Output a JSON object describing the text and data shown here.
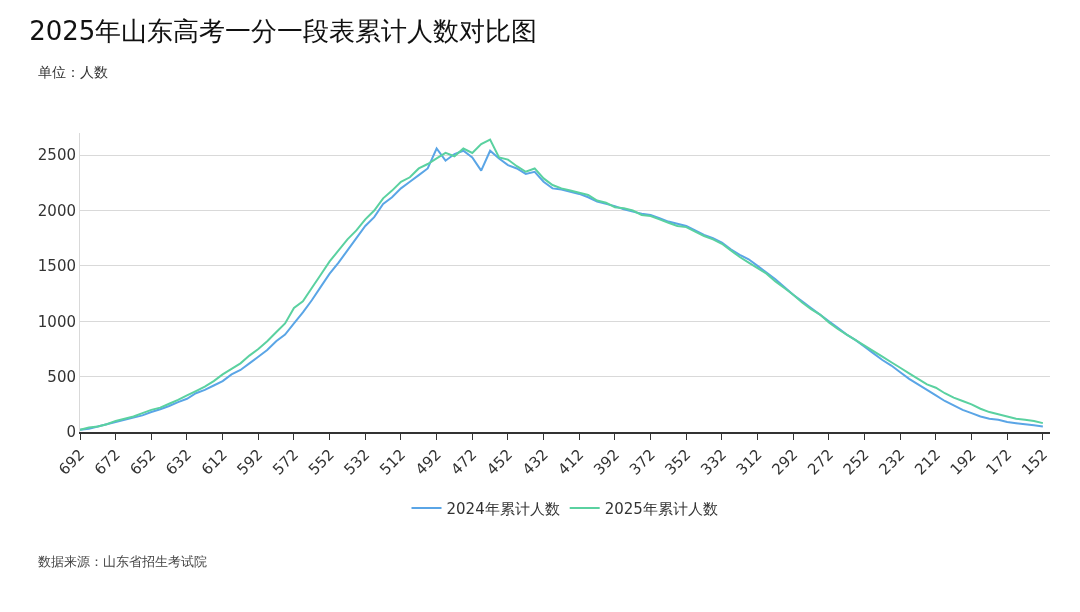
{
  "chart_data": {
    "type": "line",
    "title": "2025年山东高考一分一段表累计人数对比图",
    "ylabel": "单位：人数",
    "annotations": [
      "数据来源：山东省招生考试院"
    ],
    "x": [
      692,
      687,
      682,
      677,
      672,
      667,
      662,
      657,
      652,
      647,
      642,
      637,
      632,
      627,
      622,
      617,
      612,
      607,
      602,
      597,
      592,
      587,
      582,
      577,
      572,
      567,
      562,
      557,
      552,
      547,
      542,
      537,
      532,
      527,
      522,
      517,
      512,
      507,
      502,
      497,
      492,
      487,
      482,
      477,
      472,
      467,
      462,
      457,
      452,
      447,
      442,
      437,
      432,
      427,
      422,
      417,
      412,
      407,
      402,
      397,
      392,
      387,
      382,
      377,
      372,
      367,
      362,
      357,
      352,
      347,
      342,
      337,
      332,
      327,
      322,
      317,
      312,
      307,
      302,
      297,
      292,
      287,
      282,
      277,
      272,
      267,
      262,
      257,
      252,
      247,
      242,
      237,
      232,
      227,
      222,
      217,
      212,
      207,
      202,
      197,
      192,
      187,
      182,
      177,
      172,
      167,
      162,
      157,
      152
    ],
    "series": [
      {
        "name": "2024年累计人数",
        "color": "#5aa5e6",
        "values": [
          20,
          30,
          50,
          70,
          90,
          110,
          130,
          150,
          180,
          205,
          235,
          270,
          300,
          350,
          380,
          420,
          460,
          520,
          560,
          620,
          680,
          740,
          820,
          880,
          980,
          1080,
          1190,
          1310,
          1430,
          1530,
          1640,
          1750,
          1860,
          1940,
          2060,
          2120,
          2200,
          2260,
          2320,
          2380,
          2560,
          2450,
          2510,
          2540,
          2480,
          2360,
          2540,
          2470,
          2410,
          2380,
          2330,
          2350,
          2260,
          2200,
          2190,
          2170,
          2150,
          2120,
          2080,
          2060,
          2040,
          2010,
          1990,
          1970,
          1960,
          1930,
          1900,
          1880,
          1860,
          1820,
          1780,
          1750,
          1710,
          1650,
          1600,
          1560,
          1500,
          1440,
          1380,
          1310,
          1240,
          1180,
          1120,
          1060,
          1000,
          940,
          880,
          830,
          770,
          710,
          650,
          600,
          540,
          480,
          430,
          380,
          330,
          280,
          240,
          200,
          170,
          140,
          120,
          110,
          90,
          80,
          70,
          60,
          50
        ]
      },
      {
        "name": "2025年累计人数",
        "color": "#5ad1a0",
        "values": [
          20,
          40,
          50,
          70,
          100,
          120,
          140,
          170,
          200,
          220,
          255,
          290,
          330,
          370,
          410,
          460,
          520,
          570,
          620,
          690,
          750,
          820,
          900,
          980,
          1120,
          1180,
          1300,
          1420,
          1540,
          1640,
          1740,
          1820,
          1920,
          2000,
          2110,
          2180,
          2260,
          2300,
          2380,
          2420,
          2470,
          2520,
          2490,
          2560,
          2520,
          2600,
          2640,
          2480,
          2460,
          2400,
          2350,
          2380,
          2290,
          2230,
          2200,
          2180,
          2160,
          2140,
          2090,
          2070,
          2030,
          2020,
          2000,
          1960,
          1950,
          1920,
          1890,
          1860,
          1850,
          1810,
          1770,
          1740,
          1700,
          1640,
          1580,
          1530,
          1480,
          1430,
          1360,
          1300,
          1240,
          1170,
          1110,
          1060,
          990,
          930,
          880,
          830,
          780,
          730,
          680,
          630,
          580,
          530,
          480,
          430,
          400,
          350,
          310,
          280,
          250,
          210,
          180,
          160,
          140,
          120,
          110,
          100,
          80
        ]
      }
    ],
    "xlim": [
      692,
      148
    ],
    "xticks": [
      692,
      672,
      652,
      632,
      612,
      592,
      572,
      552,
      532,
      512,
      492,
      472,
      452,
      432,
      412,
      392,
      372,
      352,
      332,
      312,
      292,
      272,
      252,
      232,
      212,
      192,
      172,
      152
    ],
    "ylim": [
      0,
      2700
    ],
    "yticks": [
      0,
      500,
      1000,
      1500,
      2000,
      2500
    ],
    "grid": "y",
    "legend": "bottom",
    "marker": "none",
    "line_style": "solid"
  }
}
